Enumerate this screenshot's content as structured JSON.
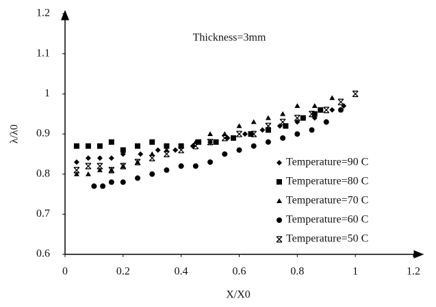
{
  "chart_data": {
    "type": "scatter",
    "title": "Thickness=3mm",
    "x_label": "X/X0",
    "y_label": "λ/λ0",
    "xlim": [
      0,
      1.2
    ],
    "xticks": [
      0,
      0.2,
      0.4,
      0.6,
      0.8,
      1,
      1.2
    ],
    "ylim": [
      0.6,
      1.2
    ],
    "yticks": [
      0.6,
      0.7,
      0.8,
      0.9,
      1,
      1.1,
      1.2
    ],
    "legend": "lower right",
    "series": [
      {
        "name": "Temperature=90 C",
        "color": "#000000",
        "marker": "diamond",
        "x": [
          0.04,
          0.08,
          0.12,
          0.16,
          0.2,
          0.26,
          0.32,
          0.38,
          0.44,
          0.5,
          0.56,
          0.62,
          0.68,
          0.74,
          0.8,
          0.86,
          0.92,
          0.96
        ],
        "values": [
          0.83,
          0.84,
          0.84,
          0.84,
          0.85,
          0.85,
          0.86,
          0.86,
          0.87,
          0.88,
          0.89,
          0.9,
          0.91,
          0.92,
          0.93,
          0.94,
          0.96,
          0.97
        ]
      },
      {
        "name": "Temperature=80 C",
        "color": "#000000",
        "marker": "square",
        "x": [
          0.04,
          0.08,
          0.12,
          0.16,
          0.2,
          0.25,
          0.3,
          0.35,
          0.4,
          0.46,
          0.52,
          0.58,
          0.64,
          0.7,
          0.76,
          0.82,
          0.86,
          0.88
        ],
        "values": [
          0.87,
          0.87,
          0.87,
          0.88,
          0.86,
          0.87,
          0.88,
          0.87,
          0.87,
          0.88,
          0.88,
          0.89,
          0.9,
          0.91,
          0.92,
          0.94,
          0.95,
          0.96
        ]
      },
      {
        "name": "Temperature=70 C",
        "color": "#000000",
        "marker": "triangle",
        "x": [
          0.04,
          0.08,
          0.12,
          0.16,
          0.2,
          0.25,
          0.3,
          0.35,
          0.4,
          0.45,
          0.5,
          0.55,
          0.6,
          0.65,
          0.7,
          0.75,
          0.8,
          0.86,
          0.92
        ],
        "values": [
          0.8,
          0.8,
          0.81,
          0.81,
          0.82,
          0.83,
          0.85,
          0.86,
          0.87,
          0.88,
          0.9,
          0.9,
          0.92,
          0.93,
          0.94,
          0.95,
          0.97,
          0.97,
          0.99
        ]
      },
      {
        "name": "Temperature=60 C",
        "color": "#000000",
        "marker": "circle",
        "x": [
          0.1,
          0.13,
          0.16,
          0.2,
          0.25,
          0.3,
          0.35,
          0.4,
          0.45,
          0.5,
          0.55,
          0.6,
          0.65,
          0.7,
          0.75,
          0.8,
          0.85,
          0.9,
          0.95
        ],
        "values": [
          0.77,
          0.77,
          0.78,
          0.78,
          0.79,
          0.8,
          0.81,
          0.82,
          0.82,
          0.83,
          0.85,
          0.86,
          0.87,
          0.88,
          0.89,
          0.9,
          0.91,
          0.93,
          0.96
        ]
      },
      {
        "name": "Temperature=50 C",
        "color": "#000000",
        "marker": "x",
        "x": [
          0.04,
          0.08,
          0.12,
          0.16,
          0.2,
          0.25,
          0.3,
          0.35,
          0.4,
          0.45,
          0.5,
          0.55,
          0.6,
          0.65,
          0.7,
          0.75,
          0.8,
          0.85,
          0.9,
          0.95,
          1
        ],
        "values": [
          0.81,
          0.82,
          0.82,
          0.81,
          0.82,
          0.83,
          0.84,
          0.85,
          0.86,
          0.87,
          0.88,
          0.89,
          0.9,
          0.9,
          0.92,
          0.93,
          0.94,
          0.95,
          0.96,
          0.98,
          1
        ]
      }
    ]
  }
}
